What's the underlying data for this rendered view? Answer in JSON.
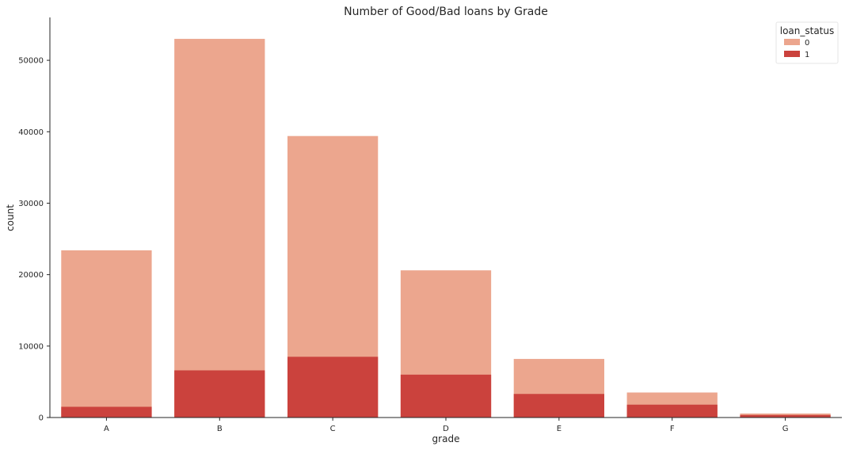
{
  "chart_data": {
    "type": "bar",
    "title": "Number of Good/Bad loans by Grade",
    "xlabel": "grade",
    "ylabel": "count",
    "categories": [
      "A",
      "B",
      "C",
      "D",
      "E",
      "F",
      "G"
    ],
    "ylim": [
      0,
      56000
    ],
    "yticks": [
      0,
      10000,
      20000,
      30000,
      40000,
      50000
    ],
    "grid": false,
    "stacking": "overlaid",
    "legend": {
      "title": "loan_status",
      "placement": "top-right"
    },
    "series": [
      {
        "name": "0",
        "color": "#eca68e",
        "values": [
          23400,
          53000,
          39400,
          20600,
          8200,
          3500,
          560
        ]
      },
      {
        "name": "1",
        "color": "#cb423d",
        "values": [
          1500,
          6600,
          8500,
          6000,
          3300,
          1800,
          350
        ]
      }
    ]
  }
}
